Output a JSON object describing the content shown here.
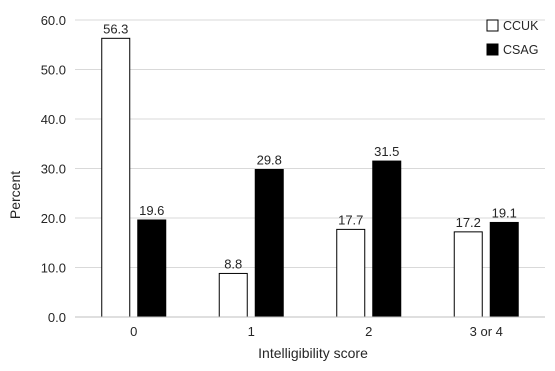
{
  "chart_data": {
    "type": "bar",
    "categories": [
      "0",
      "1",
      "2",
      "3 or 4"
    ],
    "series": [
      {
        "name": "CCUK",
        "values": [
          56.3,
          8.8,
          17.7,
          17.2
        ],
        "color": "#ffffff"
      },
      {
        "name": "CSAG",
        "values": [
          19.6,
          29.8,
          31.5,
          19.1
        ],
        "color": "#000000"
      }
    ],
    "title": "",
    "xlabel": "Intelligibility score",
    "ylabel": "Percent",
    "ylim": [
      0,
      60
    ],
    "yticks": [
      "0.0",
      "10.0",
      "20.0",
      "30.0",
      "40.0",
      "50.0",
      "60.0"
    ],
    "grid": true,
    "legend": "top-right"
  }
}
